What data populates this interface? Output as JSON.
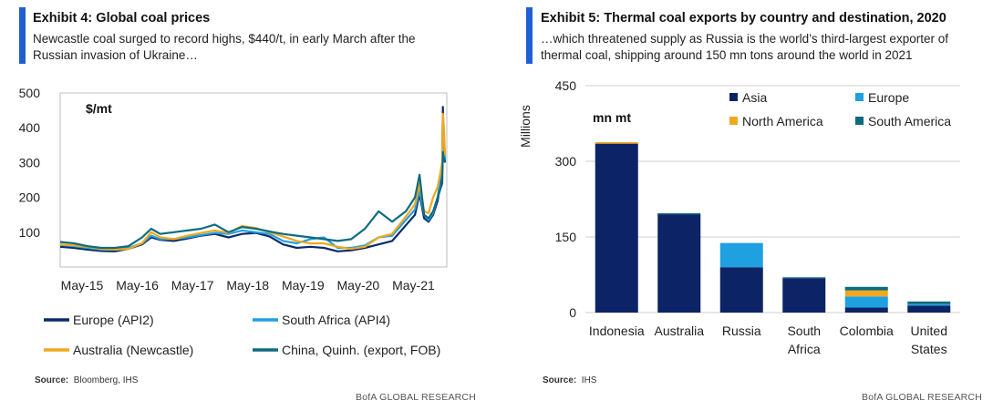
{
  "left": {
    "title": "Exhibit 4: Global coal prices",
    "subtitle_line1": "Newcastle coal surged to record highs, $440/t, in early March after the",
    "subtitle_line2": "Russian invasion of Ukraine…",
    "source_label": "Source:",
    "source_text": "Bloomberg, IHS",
    "brand": "BofA GLOBAL RESEARCH"
  },
  "right": {
    "title": "Exhibit 5: Thermal coal exports by country and destination, 2020",
    "subtitle_line1": "…which threatened supply as Russia is the world’s third-largest exporter of",
    "subtitle_line2": "thermal coal, shipping around 150 mn tons around the world in 2021",
    "source_label": "Source:",
    "source_text": "IHS",
    "brand": "BofA GLOBAL RESEARCH"
  },
  "chart_data": [
    {
      "type": "line",
      "unit_label": "$/mt",
      "ylim": [
        0,
        500
      ],
      "yticks": [
        100,
        200,
        300,
        400,
        500
      ],
      "ytick_labels": [
        "100",
        "200",
        "300",
        "400",
        "500"
      ],
      "x_tick_labels": [
        "May-15",
        "May-16",
        "May-17",
        "May-18",
        "May-19",
        "May-20",
        "May-21"
      ],
      "x_range": [
        "2015-03",
        "2022-04"
      ],
      "legend_position": "bottom",
      "series": [
        {
          "name": "Europe (API2)",
          "color": "#0c2a6b",
          "points": [
            [
              "2015-03",
              58
            ],
            [
              "2015-06",
              55
            ],
            [
              "2015-09",
              50
            ],
            [
              "2015-12",
              46
            ],
            [
              "2016-03",
              45
            ],
            [
              "2016-06",
              52
            ],
            [
              "2016-09",
              65
            ],
            [
              "2016-11",
              85
            ],
            [
              "2017-01",
              78
            ],
            [
              "2017-04",
              75
            ],
            [
              "2017-07",
              82
            ],
            [
              "2017-10",
              90
            ],
            [
              "2018-01",
              95
            ],
            [
              "2018-04",
              85
            ],
            [
              "2018-07",
              95
            ],
            [
              "2018-10",
              98
            ],
            [
              "2019-01",
              88
            ],
            [
              "2019-04",
              65
            ],
            [
              "2019-07",
              55
            ],
            [
              "2019-10",
              58
            ],
            [
              "2020-01",
              55
            ],
            [
              "2020-04",
              45
            ],
            [
              "2020-07",
              48
            ],
            [
              "2020-10",
              55
            ],
            [
              "2021-01",
              65
            ],
            [
              "2021-04",
              75
            ],
            [
              "2021-07",
              120
            ],
            [
              "2021-09",
              150
            ],
            [
              "2021-10",
              210
            ],
            [
              "2021-11",
              140
            ],
            [
              "2021-12",
              130
            ],
            [
              "2022-01",
              150
            ],
            [
              "2022-02",
              190
            ],
            [
              "2022-03-01",
              280
            ],
            [
              "2022-03-05",
              460
            ],
            [
              "2022-03-12",
              330
            ],
            [
              "2022-03-20",
              300
            ]
          ]
        },
        {
          "name": "South Africa (API4)",
          "color": "#1fa0e0",
          "points": [
            [
              "2015-03",
              64
            ],
            [
              "2015-06",
              60
            ],
            [
              "2015-09",
              55
            ],
            [
              "2015-12",
              50
            ],
            [
              "2016-03",
              50
            ],
            [
              "2016-06",
              55
            ],
            [
              "2016-09",
              68
            ],
            [
              "2016-11",
              90
            ],
            [
              "2017-01",
              80
            ],
            [
              "2017-04",
              80
            ],
            [
              "2017-07",
              85
            ],
            [
              "2017-10",
              92
            ],
            [
              "2018-01",
              98
            ],
            [
              "2018-04",
              95
            ],
            [
              "2018-07",
              105
            ],
            [
              "2018-10",
              100
            ],
            [
              "2019-01",
              95
            ],
            [
              "2019-04",
              75
            ],
            [
              "2019-07",
              68
            ],
            [
              "2019-10",
              80
            ],
            [
              "2020-01",
              85
            ],
            [
              "2020-04",
              55
            ],
            [
              "2020-07",
              55
            ],
            [
              "2020-10",
              62
            ],
            [
              "2021-01",
              85
            ],
            [
              "2021-04",
              90
            ],
            [
              "2021-07",
              135
            ],
            [
              "2021-09",
              165
            ],
            [
              "2021-10",
              220
            ],
            [
              "2021-11",
              150
            ],
            [
              "2021-12",
              135
            ],
            [
              "2022-01",
              155
            ],
            [
              "2022-02",
              200
            ],
            [
              "2022-03-01",
              300
            ],
            [
              "2022-03-05",
              440
            ],
            [
              "2022-03-12",
              340
            ],
            [
              "2022-03-20",
              310
            ]
          ]
        },
        {
          "name": "Australia (Newcastle)",
          "color": "#f0a81e",
          "points": [
            [
              "2015-03",
              65
            ],
            [
              "2015-06",
              62
            ],
            [
              "2015-09",
              58
            ],
            [
              "2015-12",
              52
            ],
            [
              "2016-03",
              50
            ],
            [
              "2016-06",
              52
            ],
            [
              "2016-09",
              68
            ],
            [
              "2016-11",
              100
            ],
            [
              "2017-01",
              85
            ],
            [
              "2017-04",
              80
            ],
            [
              "2017-07",
              90
            ],
            [
              "2017-10",
              98
            ],
            [
              "2018-01",
              105
            ],
            [
              "2018-04",
              98
            ],
            [
              "2018-07",
              118
            ],
            [
              "2018-10",
              112
            ],
            [
              "2019-01",
              100
            ],
            [
              "2019-04",
              88
            ],
            [
              "2019-07",
              75
            ],
            [
              "2019-10",
              68
            ],
            [
              "2020-01",
              68
            ],
            [
              "2020-04",
              58
            ],
            [
              "2020-07",
              52
            ],
            [
              "2020-10",
              58
            ],
            [
              "2021-01",
              85
            ],
            [
              "2021-04",
              95
            ],
            [
              "2021-07",
              145
            ],
            [
              "2021-09",
              180
            ],
            [
              "2021-10",
              240
            ],
            [
              "2021-11",
              160
            ],
            [
              "2021-12",
              155
            ],
            [
              "2022-01",
              200
            ],
            [
              "2022-02",
              230
            ],
            [
              "2022-03-01",
              300
            ],
            [
              "2022-03-05",
              440
            ],
            [
              "2022-03-12",
              400
            ],
            [
              "2022-03-20",
              320
            ]
          ]
        },
        {
          "name": "China, Quinh. (export, FOB)",
          "color": "#0e6b7e",
          "points": [
            [
              "2015-03",
              72
            ],
            [
              "2015-06",
              68
            ],
            [
              "2015-09",
              60
            ],
            [
              "2015-12",
              55
            ],
            [
              "2016-03",
              55
            ],
            [
              "2016-06",
              60
            ],
            [
              "2016-09",
              85
            ],
            [
              "2016-11",
              110
            ],
            [
              "2017-01",
              95
            ],
            [
              "2017-04",
              100
            ],
            [
              "2017-07",
              105
            ],
            [
              "2017-10",
              110
            ],
            [
              "2018-01",
              122
            ],
            [
              "2018-04",
              100
            ],
            [
              "2018-07",
              115
            ],
            [
              "2018-10",
              110
            ],
            [
              "2019-01",
              102
            ],
            [
              "2019-04",
              95
            ],
            [
              "2019-07",
              90
            ],
            [
              "2019-10",
              85
            ],
            [
              "2020-01",
              80
            ],
            [
              "2020-04",
              75
            ],
            [
              "2020-07",
              80
            ],
            [
              "2020-10",
              110
            ],
            [
              "2021-01",
              160
            ],
            [
              "2021-04",
              130
            ],
            [
              "2021-07",
              160
            ],
            [
              "2021-09",
              200
            ],
            [
              "2021-10",
              265
            ],
            [
              "2021-11",
              150
            ],
            [
              "2021-12",
              140
            ],
            [
              "2022-01",
              160
            ],
            [
              "2022-02",
              200
            ],
            [
              "2022-03-01",
              240
            ],
            [
              "2022-03-05",
              330
            ],
            [
              "2022-03-12",
              310
            ],
            [
              "2022-03-20",
              300
            ]
          ]
        }
      ]
    },
    {
      "type": "bar",
      "stacked": true,
      "unit_label": "mn mt",
      "ylabel": "Millions",
      "ylim": [
        0,
        450
      ],
      "yticks": [
        0,
        150,
        300,
        450
      ],
      "ytick_labels": [
        "0",
        "150",
        "300",
        "450"
      ],
      "categories": [
        "Indonesia",
        "Australia",
        "Russia",
        "South Africa",
        "Colombia",
        "United States"
      ],
      "category_lines": [
        [
          "Indonesia"
        ],
        [
          "Australia"
        ],
        [
          "Russia"
        ],
        [
          "South",
          "Africa"
        ],
        [
          "Colombia"
        ],
        [
          "United",
          "States"
        ]
      ],
      "legend_position": "top-right",
      "series": [
        {
          "name": "Asia",
          "color": "#0c2466",
          "values": [
            335,
            195,
            90,
            68,
            10,
            14
          ]
        },
        {
          "name": "Europe",
          "color": "#1fa0e0",
          "values": [
            0,
            0,
            48,
            0,
            22,
            3
          ]
        },
        {
          "name": "North America",
          "color": "#f0a81e",
          "values": [
            3,
            0,
            0,
            0,
            12,
            0
          ]
        },
        {
          "name": "South America",
          "color": "#0e6b7e",
          "values": [
            0,
            2,
            0,
            2,
            7,
            5
          ]
        }
      ]
    }
  ]
}
